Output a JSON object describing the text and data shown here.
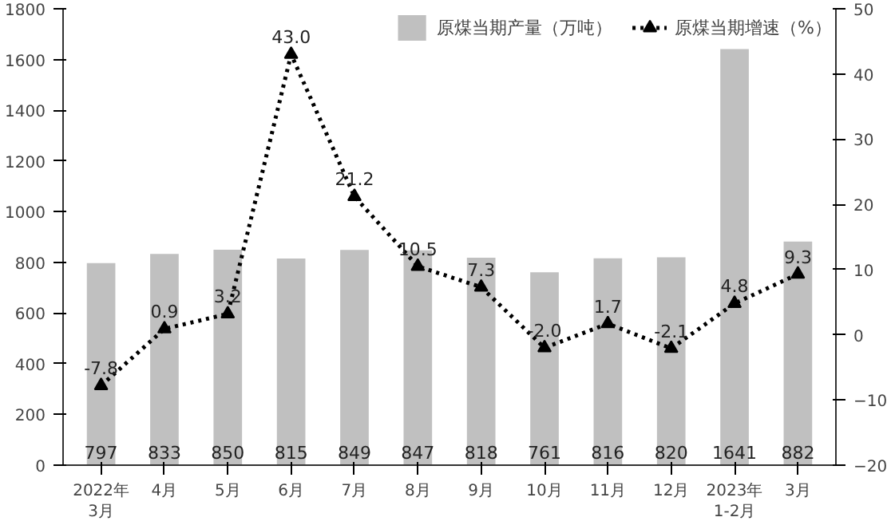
{
  "chart_data": {
    "type": "bar",
    "categories": [
      "2022年\n3月",
      "4月",
      "5月",
      "6月",
      "7月",
      "8月",
      "9月",
      "10月",
      "11月",
      "12月",
      "2023年\n1-2月",
      "3月"
    ],
    "series": [
      {
        "name": "原煤当期产量（万吨）",
        "color": "#c0c0c0",
        "values": [
          797,
          833,
          850,
          815,
          849,
          847,
          818,
          761,
          816,
          820,
          1641,
          882
        ]
      },
      {
        "name": "原煤当期增速（%）",
        "type": "line",
        "axis": "y2",
        "color": "#000000",
        "marker": "triangle",
        "line_style": "dotted",
        "values": [
          -7.8,
          0.9,
          3.2,
          43.0,
          21.2,
          10.5,
          7.3,
          -2.0,
          1.7,
          -2.1,
          4.8,
          9.3
        ],
        "value_labels": [
          "-7.8",
          "0.9",
          "3.2",
          "43.0",
          "21.2",
          "10.5",
          "7.3",
          "-2.0",
          "1.7",
          "-2.1",
          "4.8",
          "9.3"
        ]
      }
    ],
    "ylim": [
      0,
      1800
    ],
    "yticks": [
      0,
      200,
      400,
      600,
      800,
      1000,
      1200,
      1400,
      1600,
      1800
    ],
    "y2lim": [
      -20,
      50
    ],
    "y2ticks": [
      -20,
      -10,
      0,
      10,
      20,
      30,
      40,
      50
    ],
    "data_labels": true,
    "grid": false,
    "legend": "top right"
  }
}
